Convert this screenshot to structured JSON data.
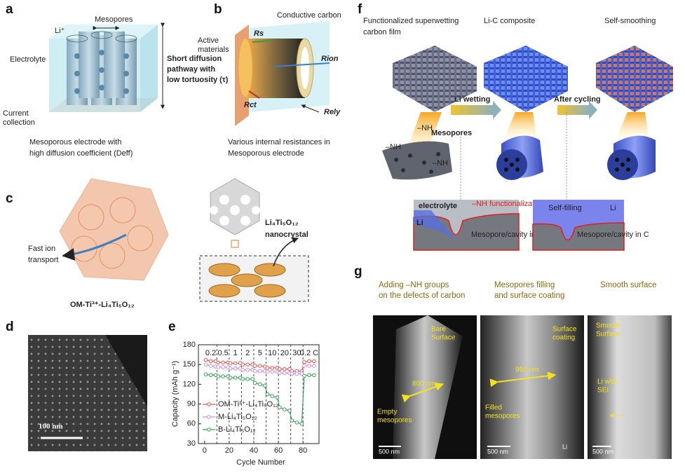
{
  "panels": {
    "a": {
      "label": "a",
      "mesopores": "Mesopores",
      "li": "Li⁺",
      "electrolyte": "Electrolyte",
      "pathway": [
        "Short diffusion",
        "pathway with",
        "low tortuosity (τ)"
      ],
      "collector": [
        "Current",
        "collection"
      ],
      "caption": [
        "Mesoporous electrode with",
        "high diffusion coefficient (Deff)"
      ]
    },
    "b": {
      "label": "b",
      "carbon": "Conductive carbon",
      "active": [
        "Active",
        "materials"
      ],
      "rs": "Rs",
      "rion": "Rion",
      "rct": "Rct",
      "rely": "Rely",
      "caption": [
        "Various internal resistances in",
        "Mesoporous electrode"
      ]
    },
    "c": {
      "label": "c",
      "transport": [
        "Fast ion",
        "transport"
      ],
      "material": "OM-Ti³⁺-Li₄Ti₅O₁₂",
      "nanocrystal": [
        "Li₄Ti₅O₁₂",
        "nanocrystal"
      ]
    },
    "d": {
      "label": "d",
      "scale": "100 nm"
    },
    "e": {
      "label": "e"
    },
    "f": {
      "label": "f",
      "film": [
        "Functionalized superwetting",
        "carbon film"
      ],
      "composite": "Li-C composite",
      "smoothing": "Self-smoothing",
      "wetting": "Li wetting",
      "cycling": "After cycling",
      "mesopores": "Mesopores",
      "nh": [
        "–NH",
        "–NH",
        "–NH"
      ],
      "electrolyte": "electrolyte",
      "functionalization": "–NH functionalization",
      "li1": "Li",
      "cavity1": "Mesopore/cavity in C",
      "selffill": "Self-filling",
      "li2": "Li",
      "cavity2": "Mesopore/cavity in C"
    },
    "g": {
      "label": "g",
      "headers": [
        [
          "Adding –NH groups",
          "on the defects of carbon"
        ],
        [
          "Mesopores filling",
          "and surface coating"
        ],
        [
          "Smooth surface"
        ]
      ],
      "img1": {
        "bare": [
          "Bare",
          "Surface"
        ],
        "width": "800 nm",
        "empty": [
          "Empty",
          "mesopores"
        ],
        "scale": "500 nm"
      },
      "img2": {
        "coating": [
          "Surface",
          "coating"
        ],
        "width": "950 nm",
        "filled": [
          "Filled",
          "mesopores"
        ],
        "scale": "500 nm",
        "li": "Li"
      },
      "img3": {
        "smooth": [
          "Smooth",
          "Surface"
        ],
        "sei": [
          "Li with",
          "SEI"
        ],
        "scale": "500 nm"
      }
    }
  },
  "chart_data": {
    "type": "line",
    "xlabel": "Cycle Number",
    "ylabel": "Capacity (mAh g⁻¹)",
    "x": [
      1,
      5,
      9,
      11,
      15,
      19,
      21,
      25,
      29,
      31,
      35,
      39,
      41,
      45,
      49,
      51,
      55,
      59,
      61,
      65,
      69,
      71,
      75,
      79,
      81,
      85,
      89
    ],
    "series": [
      {
        "name": "OM-Ti³⁺-Li₄Ti₅O₁₂",
        "color": "#e8544e",
        "values": [
          157,
          155,
          155,
          153,
          153,
          153,
          152,
          152,
          152,
          150,
          150,
          150,
          148,
          148,
          147,
          145,
          145,
          145,
          143,
          143,
          143,
          140,
          140,
          140,
          154,
          155,
          155
        ]
      },
      {
        "name": "M-Li₄Ti₅O₁₂",
        "color": "#c98fe0",
        "values": [
          150,
          148,
          147,
          146,
          146,
          146,
          144,
          144,
          144,
          142,
          142,
          142,
          140,
          140,
          140,
          139,
          139,
          139,
          137,
          137,
          137,
          136,
          136,
          136,
          148,
          148,
          148
        ]
      },
      {
        "name": "B-Li₄Ti₅O₁₂",
        "color": "#3aa05a",
        "values": [
          135,
          134,
          134,
          132,
          132,
          132,
          130,
          130,
          130,
          128,
          128,
          128,
          122,
          120,
          118,
          105,
          102,
          100,
          85,
          82,
          80,
          65,
          62,
          60,
          133,
          134,
          134
        ]
      }
    ],
    "rate_labels": [
      "0.2",
      "0.5",
      "1",
      "2",
      "5",
      "10",
      "20",
      "30",
      "0.2 C"
    ],
    "segment_boundaries": [
      10,
      20,
      30,
      40,
      50,
      60,
      70,
      80
    ],
    "xlim": [
      -5,
      93
    ],
    "xticks": [
      0,
      20,
      40,
      60,
      80
    ],
    "ylim": [
      30,
      180
    ],
    "yticks": [
      30,
      60,
      90,
      120,
      150,
      180
    ],
    "legend": "lower left"
  }
}
